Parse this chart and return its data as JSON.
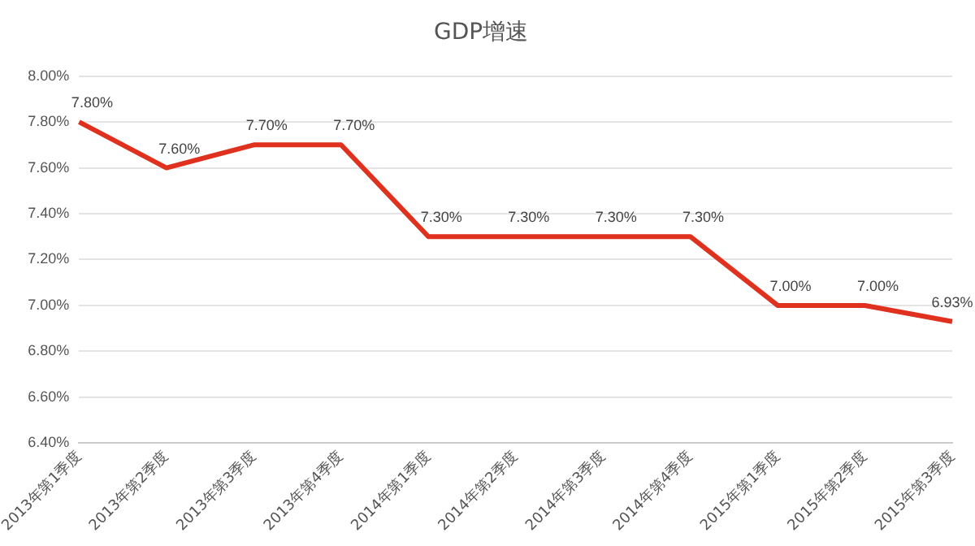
{
  "chart_data": {
    "type": "line",
    "title": "GDP增速",
    "categories": [
      "2013年第1季度",
      "2013年第2季度",
      "2013年第3季度",
      "2013年第4季度",
      "2014年第1季度",
      "2014年第2季度",
      "2014年第3季度",
      "2014年第4季度",
      "2015年第1季度",
      "2015年第2季度",
      "2015年第3季度"
    ],
    "series": [
      {
        "color": "#e0301e",
        "values": [
          7.8,
          7.6,
          7.7,
          7.7,
          7.3,
          7.3,
          7.3,
          7.3,
          7.0,
          7.0,
          6.93
        ],
        "value_labels": [
          "7.80%",
          "7.60%",
          "7.70%",
          "7.70%",
          "7.30%",
          "7.30%",
          "7.30%",
          "7.30%",
          "7.00%",
          "7.00%",
          "6.93%"
        ]
      }
    ],
    "ylim": [
      6.4,
      8.0
    ],
    "yticks": [
      {
        "value": 6.4,
        "label": "6.40%"
      },
      {
        "value": 6.6,
        "label": "6.60%"
      },
      {
        "value": 6.8,
        "label": "6.80%"
      },
      {
        "value": 7.0,
        "label": "7.00%"
      },
      {
        "value": 7.2,
        "label": "7.20%"
      },
      {
        "value": 7.4,
        "label": "7.40%"
      },
      {
        "value": 7.6,
        "label": "7.60%"
      },
      {
        "value": 7.8,
        "label": "7.80%"
      },
      {
        "value": 8.0,
        "label": "8.00%"
      }
    ],
    "grid": "y",
    "legend": false,
    "marker": "none",
    "line_style": "solid"
  }
}
